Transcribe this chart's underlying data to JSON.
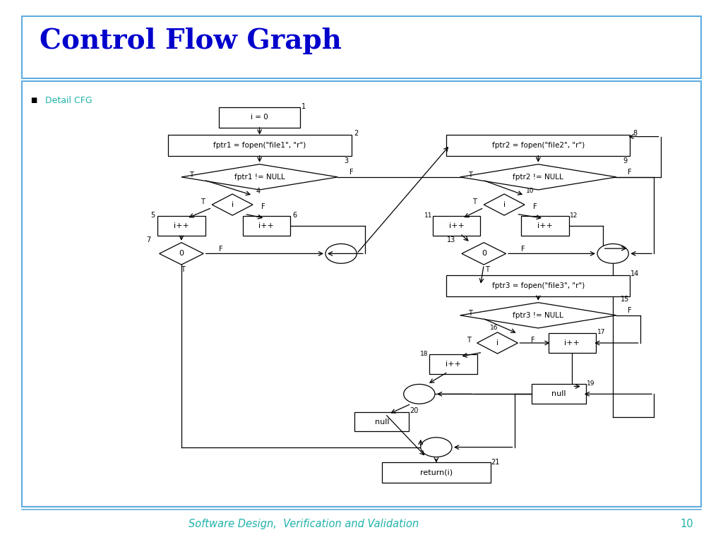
{
  "title": "Control Flow Graph",
  "title_color": "#0000CC",
  "subtitle": "Detail CFG",
  "subtitle_color": "#20B2AA",
  "footer": "Software Design,  Verification and Validation",
  "footer_color": "#20B2AA",
  "page_num": "10",
  "border_color": "#5DADE2",
  "bg_color": "#FFFFFF"
}
